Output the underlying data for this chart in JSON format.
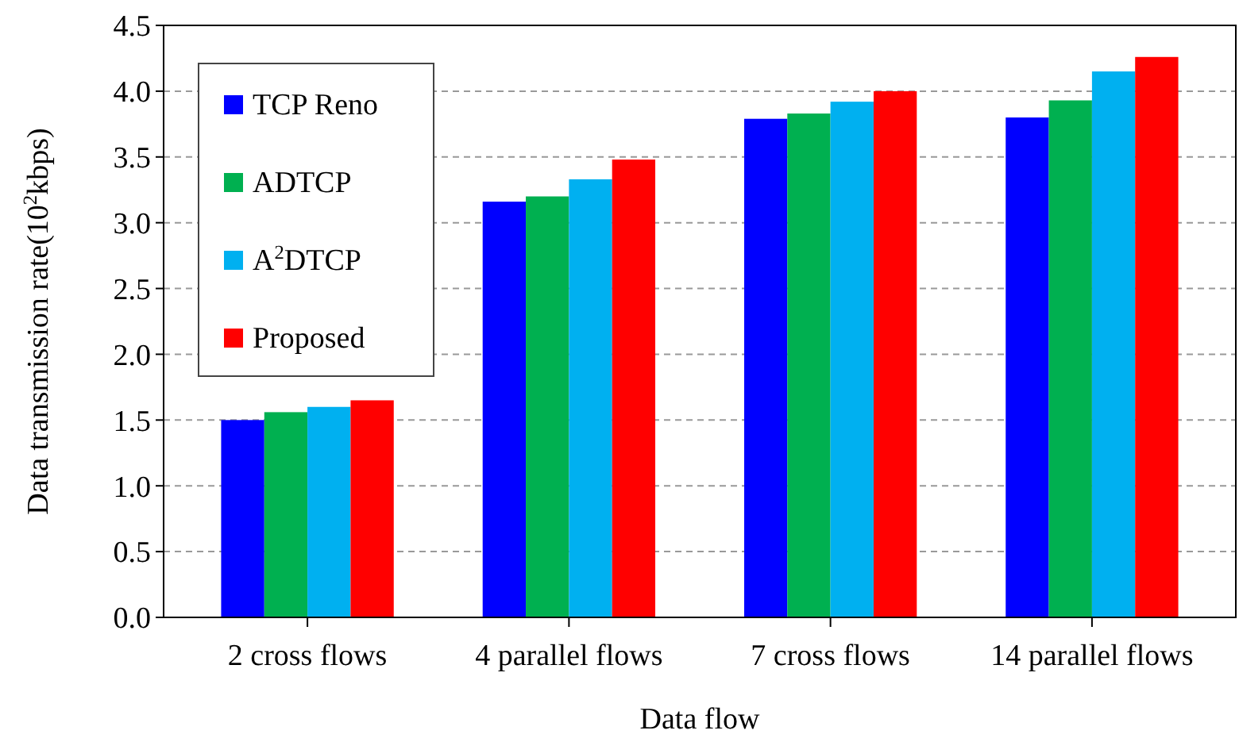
{
  "chart_data": {
    "type": "bar",
    "xlabel": "Data flow",
    "ylabel": "Data transmission rate(10$^{2}$kbps)",
    "categories": [
      "2 cross flows",
      "4 parallel flows",
      "7 cross flows",
      "14 parallel flows"
    ],
    "series": [
      {
        "name": "TCP Reno",
        "color": "#0000ff",
        "values": [
          1.5,
          3.16,
          3.79,
          3.8
        ]
      },
      {
        "name": "ADTCP",
        "color": "#00b050",
        "values": [
          1.56,
          3.2,
          3.83,
          3.93
        ]
      },
      {
        "name": "A$^{2}$DTCP",
        "color": "#00b0f0",
        "values": [
          1.6,
          3.33,
          3.92,
          4.15
        ]
      },
      {
        "name": "Proposed",
        "color": "#ff0000",
        "values": [
          1.65,
          3.48,
          4.0,
          4.26
        ]
      }
    ],
    "ylim": [
      0,
      4.5
    ],
    "yticks": [
      {
        "value": 0,
        "label": "0.0"
      },
      {
        "value": 0.5,
        "label": "0.5"
      },
      {
        "value": 1,
        "label": "1.0"
      },
      {
        "value": 1.5,
        "label": "1.5"
      },
      {
        "value": 2,
        "label": "2.0"
      },
      {
        "value": 2.5,
        "label": "2.5"
      },
      {
        "value": 3,
        "label": "3.0"
      },
      {
        "value": 3.5,
        "label": "3.5"
      },
      {
        "value": 4,
        "label": "4.0"
      },
      {
        "value": 4.5,
        "label": "4.5"
      }
    ],
    "grid": "y",
    "legend": "top left"
  }
}
